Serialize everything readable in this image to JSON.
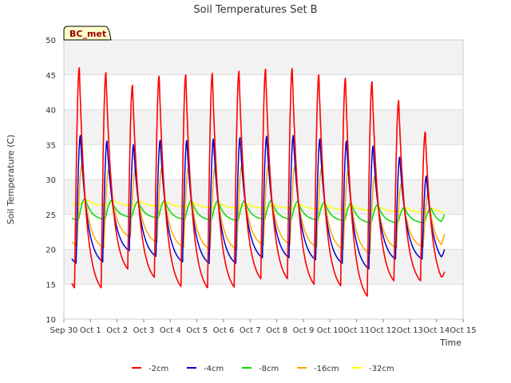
{
  "chart_data": {
    "type": "line",
    "title": "Soil Temperatures Set B",
    "xlabel": "Time",
    "ylabel": "Soil Temperature (C)",
    "ylim": [
      10,
      50
    ],
    "yticks": [
      10,
      15,
      20,
      25,
      30,
      35,
      40,
      45,
      50
    ],
    "xlim": [
      0,
      15
    ],
    "xticks": [
      0,
      1,
      2,
      3,
      4,
      5,
      6,
      7,
      8,
      9,
      10,
      11,
      12,
      13,
      14,
      15
    ],
    "xtick_labels": [
      "Sep 30",
      "Oct 1",
      "Oct 2",
      "Oct 3",
      "Oct 4",
      "Oct 5",
      "Oct 6",
      "Oct 7",
      "Oct 8",
      "Oct 9",
      "Oct 10",
      "Oct 11",
      "Oct 12",
      "Oct 13",
      "Oct 14",
      "Oct 15"
    ],
    "x_range": [
      0.3,
      14.3
    ],
    "grid": true,
    "background_bands": "alternating light grey",
    "legend_position": "bottom-center",
    "annotation": "BC_met",
    "series": [
      {
        "name": "-2cm",
        "color": "#ff0000",
        "daily_min": [
          14.5,
          14.5,
          17.2,
          16.0,
          14.7,
          14.5,
          14.6,
          15.8,
          15.8,
          15.0,
          14.8,
          13.3,
          15.5,
          15.5,
          14.8
        ],
        "daily_max": [
          46.0,
          45.3,
          43.5,
          44.8,
          45.0,
          45.2,
          45.5,
          45.8,
          45.9,
          45.0,
          44.5,
          44.0,
          41.3,
          36.8
        ],
        "end_value": 16.8
      },
      {
        "name": "-4cm",
        "color": "#0000cc",
        "daily_min": [
          18.0,
          18.2,
          19.8,
          19.0,
          18.2,
          18.0,
          18.0,
          18.8,
          18.8,
          18.5,
          18.0,
          17.2,
          18.6,
          18.6,
          17.9
        ],
        "daily_max": [
          36.3,
          35.5,
          35.0,
          35.6,
          35.6,
          35.8,
          36.0,
          36.2,
          36.3,
          35.8,
          35.5,
          34.8,
          33.2,
          30.5
        ],
        "end_value": 20.0
      },
      {
        "name": "-8cm",
        "color": "#00dd00",
        "daily_min": [
          24.2,
          24.3,
          24.6,
          24.5,
          24.3,
          24.2,
          24.1,
          24.3,
          24.3,
          24.2,
          24.1,
          23.8,
          23.8,
          23.8,
          23.6
        ],
        "daily_max": [
          27.3,
          27.0,
          26.9,
          27.0,
          27.0,
          27.0,
          27.0,
          27.0,
          26.9,
          26.8,
          26.6,
          26.4,
          26.0,
          25.9
        ],
        "end_value": 25.0
      },
      {
        "name": "-16cm",
        "color": "#ffa500",
        "daily_min": [
          20.5,
          20.2,
          21.8,
          21.0,
          20.3,
          20.0,
          20.0,
          20.6,
          20.7,
          20.3,
          20.0,
          19.4,
          20.2,
          20.3,
          19.8
        ],
        "daily_max": [
          32.3,
          31.5,
          31.3,
          31.7,
          31.7,
          31.8,
          32.0,
          32.0,
          32.0,
          31.6,
          31.3,
          30.5,
          29.4,
          28.0
        ],
        "end_value": 22.2
      },
      {
        "name": "-32cm",
        "color": "#ffff00",
        "daily_min": [
          26.4,
          26.3,
          26.3,
          26.2,
          26.1,
          26.0,
          25.9,
          25.9,
          25.9,
          25.8,
          25.7,
          25.6,
          25.4,
          25.3,
          25.2
        ],
        "daily_max": [
          27.0,
          26.9,
          26.8,
          26.7,
          26.6,
          26.5,
          26.5,
          26.4,
          26.4,
          26.3,
          26.2,
          26.0,
          25.9,
          25.8
        ],
        "end_value": 25.3
      }
    ]
  }
}
